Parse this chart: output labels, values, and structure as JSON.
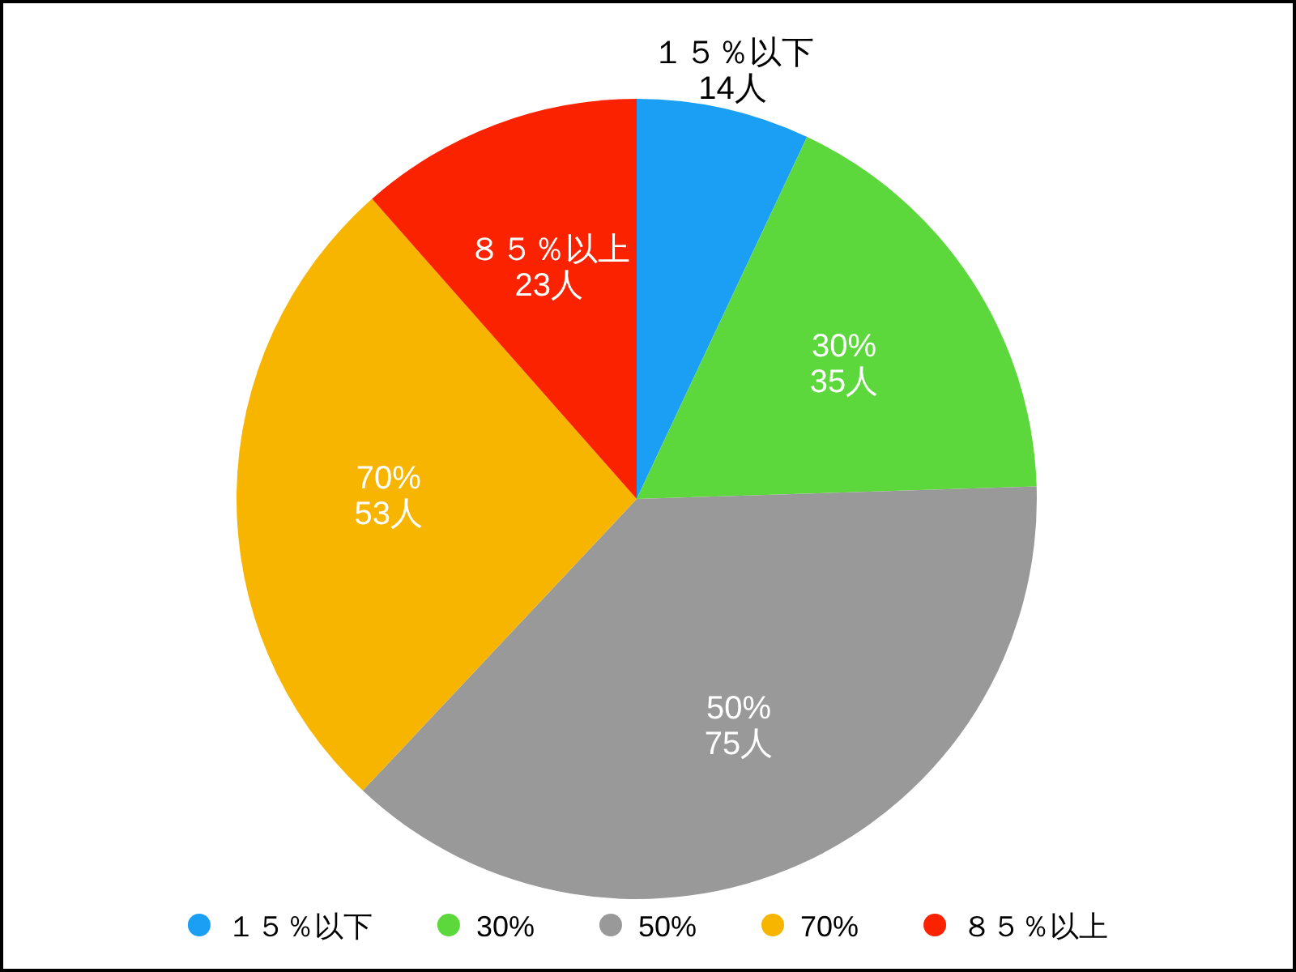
{
  "chart_data": {
    "type": "pie",
    "categories": [
      "１５％以下",
      "30%",
      "50%",
      "70%",
      "８５％以上"
    ],
    "values": [
      14,
      35,
      75,
      53,
      23
    ],
    "value_labels": [
      "14人",
      "35人",
      "75人",
      "53人",
      "23人"
    ],
    "colors": [
      "#1a9ff5",
      "#5dd83c",
      "#999999",
      "#f7b500",
      "#fb2200"
    ],
    "legend": "bottom"
  }
}
